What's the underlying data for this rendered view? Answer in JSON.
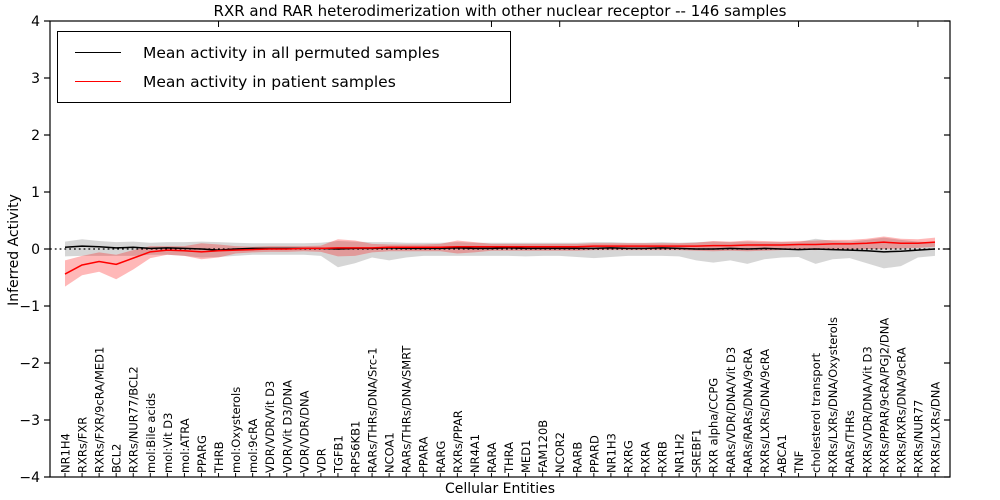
{
  "chart_data": {
    "type": "line",
    "title": "RXR and RAR heterodimerization with other nuclear receptor -- 146 samples",
    "xlabel": "Cellular Entities",
    "ylabel": "Inferred Activity",
    "ylim": [
      -4,
      4
    ],
    "yticks": [
      -4,
      -3,
      -2,
      -1,
      0,
      1,
      2,
      3,
      4
    ],
    "grid": false,
    "legend_position": "upper left",
    "zero_line": true,
    "categories": [
      "NR1H4",
      "RXRs/FXR",
      "RXRs/FXR/9cRA/MED1",
      "BCL2",
      "RXRs/NUR77/BCL2",
      "mol:Bile acids",
      "mol:Vit D3",
      "mol:ATRA",
      "PPARG",
      "THRB",
      "mol:Oxysterols",
      "mol:9cRA",
      "VDR/VDR/Vit D3",
      "VDR/Vit D3/DNA",
      "VDR/VDR/DNA",
      "VDR",
      "TGFB1",
      "RPS6KB1",
      "RARs/THRs/DNA/Src-1",
      "NCOA1",
      "RARs/THRs/DNA/SMRT",
      "PPARA",
      "RARG",
      "RXRs/PPAR",
      "NR4A1",
      "RARA",
      "THRA",
      "MED1",
      "FAM120B",
      "NCOR2",
      "RARB",
      "PPARD",
      "NR1H3",
      "RXRG",
      "RXRA",
      "RXRB",
      "NR1H2",
      "SREBF1",
      "RXR alpha/CCPG",
      "RARs/VDR/DNA/Vit D3",
      "RARs/RARs/DNA/9cRA",
      "RXRs/LXRs/DNA/9cRA",
      "ABCA1",
      "TNF",
      "cholesterol transport",
      "RXRs/LXRs/DNA/Oxysterols",
      "RARs/THRs",
      "RXRs/VDR/DNA/Vit D3",
      "RXRs/PPAR/9cRA/PGJ2/DNA",
      "RXRs/RXRs/DNA/9cRA",
      "RXRs/NUR77",
      "RXRs/LXRs/DNA"
    ],
    "series": [
      {
        "name": "Mean activity in all permuted samples",
        "color": "#000000",
        "band_color": "#000000",
        "band_opacity": 0.16,
        "values": [
          0.03,
          0.05,
          0.04,
          0.02,
          0.03,
          0.01,
          0.02,
          0.01,
          0.0,
          -0.02,
          0.0,
          0.01,
          0.01,
          0.01,
          0.01,
          0.01,
          0.0,
          0.01,
          0.01,
          0.02,
          0.01,
          0.01,
          0.01,
          0.02,
          0.01,
          0.01,
          0.02,
          0.01,
          0.01,
          0.01,
          0.01,
          0.01,
          0.02,
          0.01,
          0.01,
          0.02,
          0.01,
          0.0,
          0.0,
          0.01,
          0.0,
          0.01,
          0.0,
          -0.01,
          0.0,
          -0.01,
          -0.02,
          -0.03,
          -0.05,
          -0.04,
          -0.02,
          0.0
        ],
        "band_lower": [
          -0.13,
          -0.12,
          -0.12,
          -0.12,
          -0.12,
          -0.1,
          -0.1,
          -0.12,
          -0.15,
          -0.14,
          -0.12,
          -0.1,
          -0.1,
          -0.1,
          -0.1,
          -0.12,
          -0.32,
          -0.25,
          -0.15,
          -0.2,
          -0.15,
          -0.12,
          -0.12,
          -0.12,
          -0.12,
          -0.12,
          -0.12,
          -0.13,
          -0.12,
          -0.12,
          -0.14,
          -0.16,
          -0.14,
          -0.12,
          -0.12,
          -0.12,
          -0.13,
          -0.2,
          -0.24,
          -0.2,
          -0.26,
          -0.18,
          -0.15,
          -0.14,
          -0.26,
          -0.18,
          -0.16,
          -0.25,
          -0.34,
          -0.3,
          -0.15,
          -0.12
        ],
        "band_upper": [
          0.13,
          0.17,
          0.14,
          0.12,
          0.13,
          0.11,
          0.12,
          0.12,
          0.13,
          0.12,
          0.11,
          0.1,
          0.1,
          0.1,
          0.1,
          0.11,
          0.14,
          0.13,
          0.12,
          0.12,
          0.11,
          0.11,
          0.11,
          0.12,
          0.11,
          0.11,
          0.11,
          0.11,
          0.11,
          0.11,
          0.11,
          0.12,
          0.12,
          0.11,
          0.11,
          0.12,
          0.11,
          0.12,
          0.13,
          0.12,
          0.13,
          0.12,
          0.12,
          0.12,
          0.18,
          0.14,
          0.13,
          0.16,
          0.2,
          0.16,
          0.13,
          0.12
        ]
      },
      {
        "name": "Mean activity in patient samples",
        "color": "#ff0000",
        "band_color": "#ff0000",
        "band_opacity": 0.28,
        "values": [
          -0.44,
          -0.28,
          -0.22,
          -0.27,
          -0.16,
          -0.05,
          -0.02,
          -0.03,
          -0.05,
          -0.03,
          -0.02,
          -0.01,
          0.0,
          0.0,
          0.01,
          0.01,
          0.02,
          0.02,
          0.02,
          0.03,
          0.03,
          0.03,
          0.03,
          0.04,
          0.04,
          0.04,
          0.04,
          0.04,
          0.04,
          0.04,
          0.04,
          0.05,
          0.05,
          0.05,
          0.05,
          0.05,
          0.05,
          0.05,
          0.06,
          0.06,
          0.07,
          0.07,
          0.07,
          0.08,
          0.08,
          0.09,
          0.09,
          0.1,
          0.12,
          0.1,
          0.1,
          0.12
        ],
        "band_lower": [
          -0.66,
          -0.46,
          -0.4,
          -0.53,
          -0.36,
          -0.16,
          -0.1,
          -0.12,
          -0.18,
          -0.15,
          -0.08,
          -0.06,
          -0.05,
          -0.05,
          -0.04,
          -0.05,
          -0.13,
          -0.12,
          -0.06,
          -0.04,
          -0.04,
          -0.04,
          -0.04,
          -0.08,
          -0.06,
          -0.03,
          -0.03,
          -0.03,
          -0.03,
          -0.03,
          -0.03,
          -0.02,
          -0.02,
          -0.02,
          -0.02,
          -0.02,
          -0.02,
          -0.03,
          -0.04,
          -0.03,
          -0.04,
          -0.03,
          -0.02,
          -0.01,
          -0.02,
          0.0,
          0.0,
          0.0,
          0.0,
          0.01,
          0.02,
          0.04
        ],
        "band_upper": [
          -0.2,
          -0.12,
          -0.06,
          -0.1,
          -0.02,
          0.05,
          0.05,
          0.05,
          0.1,
          0.08,
          0.05,
          0.04,
          0.05,
          0.05,
          0.05,
          0.06,
          0.17,
          0.15,
          0.09,
          0.08,
          0.08,
          0.08,
          0.09,
          0.15,
          0.12,
          0.09,
          0.09,
          0.09,
          0.09,
          0.09,
          0.09,
          0.1,
          0.1,
          0.1,
          0.1,
          0.1,
          0.1,
          0.11,
          0.14,
          0.13,
          0.15,
          0.14,
          0.13,
          0.14,
          0.15,
          0.16,
          0.16,
          0.18,
          0.22,
          0.18,
          0.17,
          0.2
        ]
      }
    ]
  }
}
